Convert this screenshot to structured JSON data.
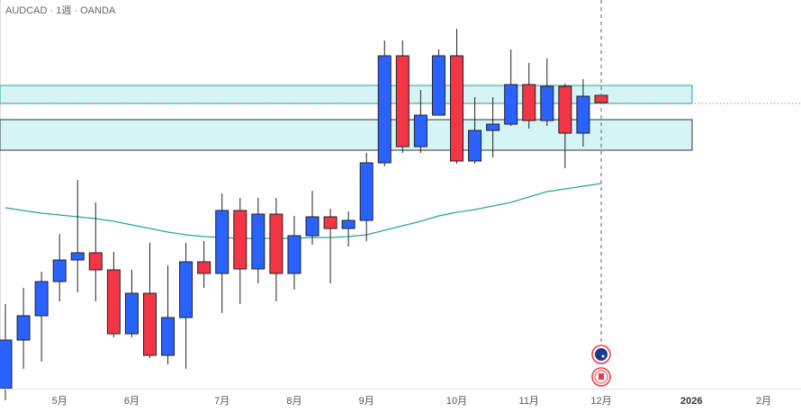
{
  "chart_data": {
    "type": "candlestick",
    "title": "AUDCAD · 1週 · OANDA",
    "categories": [
      null,
      null,
      null,
      null,
      null,
      null,
      null,
      null,
      null,
      null,
      null,
      null,
      null,
      null,
      null,
      null,
      null,
      null,
      null,
      null,
      null,
      null,
      null,
      null,
      null,
      null,
      null,
      null,
      null,
      null,
      null,
      null,
      null,
      null
    ],
    "open": [
      0.8728,
      0.8782,
      0.8809,
      0.8847,
      0.8871,
      0.8879,
      0.886,
      0.8789,
      0.8834,
      0.8765,
      0.8807,
      0.8869,
      0.8856,
      0.8926,
      0.8861,
      0.8922,
      0.8856,
      0.8898,
      0.8919,
      0.8906,
      0.8915,
      0.8979,
      0.9098,
      0.8997,
      0.9032,
      0.9098,
      0.8981,
      0.9015,
      0.9022,
      0.9066,
      0.9026,
      0.9064,
      0.9012,
      0.9054
    ],
    "high": [
      0.8822,
      0.884,
      0.8858,
      0.89,
      0.896,
      0.8935,
      0.888,
      0.886,
      0.889,
      0.8865,
      0.889,
      0.8892,
      0.8945,
      0.894,
      0.894,
      0.894,
      0.892,
      0.8948,
      0.8928,
      0.8925,
      0.899,
      0.9115,
      0.9115,
      0.906,
      0.9105,
      0.9128,
      0.9052,
      0.9052,
      0.9105,
      0.909,
      0.9095,
      0.9067,
      0.9072,
      0.9056
    ],
    "low": [
      0.8715,
      0.875,
      0.8758,
      0.8825,
      0.8835,
      0.8825,
      0.8785,
      0.8785,
      0.8762,
      0.8755,
      0.875,
      0.884,
      0.8812,
      0.8822,
      0.8845,
      0.8825,
      0.8838,
      0.8888,
      0.8845,
      0.8886,
      0.8892,
      0.8975,
      0.899,
      0.899,
      0.9032,
      0.8978,
      0.8978,
      0.8985,
      0.902,
      0.9017,
      0.902,
      0.8973,
      0.8997,
      0.9044
    ],
    "close": [
      0.8782,
      0.8809,
      0.8847,
      0.8871,
      0.8879,
      0.886,
      0.8789,
      0.8834,
      0.8765,
      0.8807,
      0.8869,
      0.8856,
      0.8926,
      0.8861,
      0.8922,
      0.8856,
      0.8898,
      0.8919,
      0.8906,
      0.8915,
      0.8979,
      0.9098,
      0.8997,
      0.9032,
      0.9098,
      0.8981,
      0.9015,
      0.9022,
      0.9066,
      0.9026,
      0.9064,
      0.9012,
      0.9053,
      0.9046
    ],
    "up_color": "#2962ff",
    "down_color": "#f23645",
    "moving_average": {
      "color": "#26a69a",
      "values": [
        0.8929,
        0.8926,
        0.8923,
        0.8921,
        0.8919,
        0.8917,
        0.8914,
        0.891,
        0.8906,
        0.8902,
        0.8899,
        0.8897,
        0.8896,
        0.8895,
        0.8895,
        0.8895,
        0.8895,
        0.8896,
        0.8896,
        0.8897,
        0.8899,
        0.8904,
        0.8909,
        0.8914,
        0.892,
        0.8924,
        0.8927,
        0.8931,
        0.8935,
        0.8941,
        0.8947,
        0.895,
        0.8953,
        0.8956
      ]
    },
    "zones": [
      [
        0.9065,
        0.9045
      ],
      [
        0.9027,
        0.8993
      ]
    ],
    "last_price": 0.9045,
    "ylim": [
      0.8702,
      0.916
    ],
    "xlim": [
      -0.3,
      44
    ],
    "xticks": [
      {
        "value": 3,
        "label": "5月"
      },
      {
        "value": 7,
        "label": "6月"
      },
      {
        "value": 12,
        "label": "7月"
      },
      {
        "value": 16,
        "label": "8月"
      },
      {
        "value": 20,
        "label": "9月"
      },
      {
        "value": 25,
        "label": "10月"
      },
      {
        "value": 29,
        "label": "11月"
      },
      {
        "value": 33,
        "label": "12月"
      },
      {
        "value": 38,
        "label": "2026"
      },
      {
        "value": 42,
        "label": "2月"
      }
    ]
  }
}
